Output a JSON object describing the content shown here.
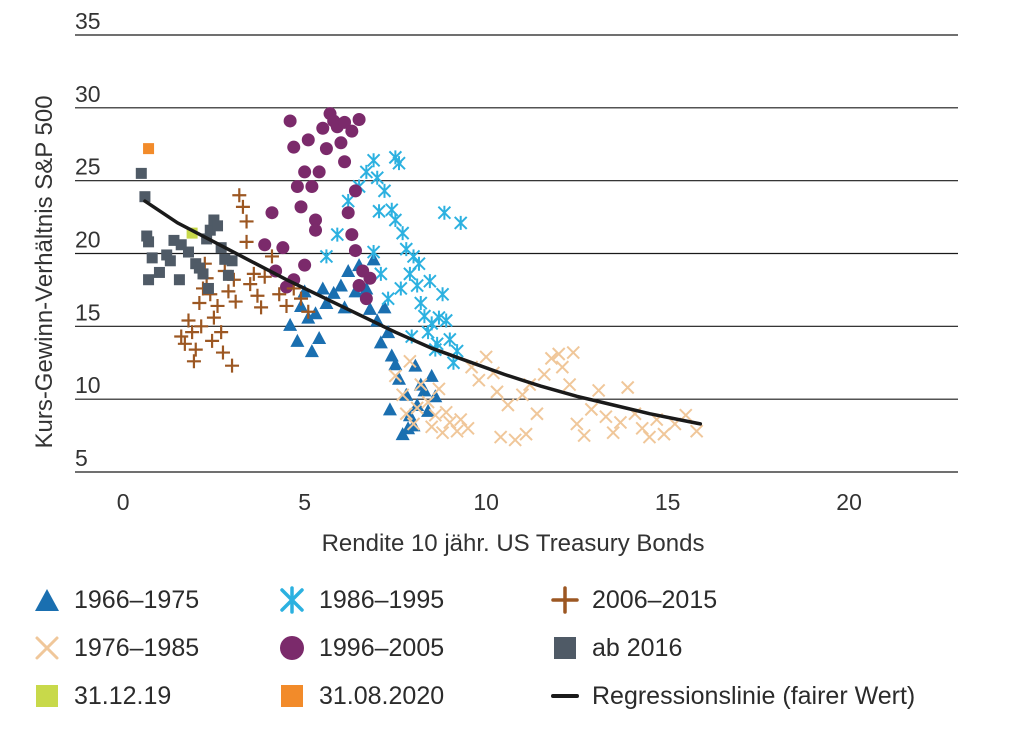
{
  "chart_data": {
    "type": "scatter",
    "title": "",
    "xlabel": "Rendite 10 jähr. US Treasury Bonds",
    "ylabel": "Kurs-Gewinn-Verhältnis S&P 500",
    "xlim": [
      -0.5,
      23
    ],
    "ylim": [
      5,
      35
    ],
    "x_ticks": [
      "0",
      "5",
      "10",
      "15",
      "20"
    ],
    "y_ticks": [
      "5",
      "10",
      "15",
      "20",
      "25",
      "30",
      "35"
    ],
    "grid": "horizontal",
    "legend_position": "bottom",
    "series": [
      {
        "name": "1966–1975",
        "marker": "triangle",
        "color": "#1a6fb0",
        "points": [
          [
            4.6,
            15.1
          ],
          [
            4.8,
            14.0
          ],
          [
            4.9,
            16.4
          ],
          [
            5.0,
            17.4
          ],
          [
            5.1,
            15.6
          ],
          [
            5.2,
            13.3
          ],
          [
            5.3,
            15.9
          ],
          [
            5.4,
            14.2
          ],
          [
            5.5,
            17.6
          ],
          [
            5.6,
            16.6
          ],
          [
            5.8,
            17.3
          ],
          [
            6.0,
            17.8
          ],
          [
            6.1,
            16.3
          ],
          [
            6.2,
            18.8
          ],
          [
            6.4,
            17.4
          ],
          [
            6.5,
            19.2
          ],
          [
            6.7,
            17.6
          ],
          [
            6.8,
            16.2
          ],
          [
            6.9,
            19.6
          ],
          [
            7.0,
            15.4
          ],
          [
            7.1,
            13.9
          ],
          [
            7.2,
            16.3
          ],
          [
            7.3,
            14.6
          ],
          [
            7.4,
            13.0
          ],
          [
            7.5,
            12.4
          ],
          [
            7.6,
            11.4
          ],
          [
            7.8,
            10.3
          ],
          [
            7.9,
            8.9
          ],
          [
            8.0,
            8.2
          ],
          [
            8.1,
            9.6
          ],
          [
            8.2,
            11.0
          ],
          [
            8.3,
            10.6
          ],
          [
            8.4,
            9.2
          ],
          [
            8.5,
            11.6
          ],
          [
            8.6,
            10.2
          ],
          [
            7.7,
            7.6
          ],
          [
            7.85,
            8.0
          ],
          [
            8.05,
            12.3
          ],
          [
            7.35,
            9.3
          ]
        ]
      },
      {
        "name": "1976–1985",
        "marker": "x",
        "color": "#f0c79a",
        "points": [
          [
            7.5,
            11.6
          ],
          [
            7.7,
            10.3
          ],
          [
            7.8,
            9.0
          ],
          [
            7.9,
            12.6
          ],
          [
            8.0,
            8.3
          ],
          [
            8.1,
            9.4
          ],
          [
            8.2,
            11.0
          ],
          [
            8.4,
            9.8
          ],
          [
            8.5,
            8.1
          ],
          [
            8.6,
            8.9
          ],
          [
            8.8,
            7.7
          ],
          [
            8.9,
            9.1
          ],
          [
            9.0,
            8.4
          ],
          [
            9.2,
            7.8
          ],
          [
            9.3,
            8.6
          ],
          [
            9.5,
            8.0
          ],
          [
            9.6,
            12.2
          ],
          [
            9.8,
            11.3
          ],
          [
            10.0,
            12.9
          ],
          [
            10.2,
            11.8
          ],
          [
            10.3,
            10.5
          ],
          [
            10.4,
            7.4
          ],
          [
            10.6,
            9.6
          ],
          [
            10.8,
            7.2
          ],
          [
            11.0,
            10.3
          ],
          [
            11.2,
            11.0
          ],
          [
            11.4,
            9.0
          ],
          [
            11.6,
            11.7
          ],
          [
            11.8,
            12.8
          ],
          [
            12.0,
            13.1
          ],
          [
            12.1,
            12.2
          ],
          [
            12.3,
            11.0
          ],
          [
            12.5,
            8.3
          ],
          [
            12.7,
            7.5
          ],
          [
            12.9,
            9.3
          ],
          [
            13.1,
            10.6
          ],
          [
            13.3,
            8.8
          ],
          [
            13.5,
            7.7
          ],
          [
            13.7,
            8.4
          ],
          [
            13.9,
            10.8
          ],
          [
            14.1,
            9.0
          ],
          [
            14.3,
            8.0
          ],
          [
            14.5,
            7.4
          ],
          [
            14.7,
            8.6
          ],
          [
            14.9,
            7.6
          ],
          [
            15.2,
            8.3
          ],
          [
            15.5,
            8.9
          ],
          [
            15.8,
            7.8
          ],
          [
            8.7,
            10.7
          ],
          [
            11.1,
            7.6
          ],
          [
            12.4,
            13.2
          ]
        ]
      },
      {
        "name": "1986–1995",
        "marker": "asterisk",
        "color": "#2cb1e0",
        "points": [
          [
            5.6,
            19.8
          ],
          [
            5.9,
            21.3
          ],
          [
            6.2,
            23.6
          ],
          [
            6.5,
            24.6
          ],
          [
            6.7,
            25.6
          ],
          [
            6.9,
            26.4
          ],
          [
            7.0,
            25.2
          ],
          [
            7.2,
            24.3
          ],
          [
            7.4,
            23.0
          ],
          [
            7.5,
            26.6
          ],
          [
            7.6,
            26.2
          ],
          [
            7.7,
            21.4
          ],
          [
            7.8,
            20.3
          ],
          [
            7.9,
            18.6
          ],
          [
            8.0,
            19.8
          ],
          [
            8.1,
            17.8
          ],
          [
            8.2,
            16.6
          ],
          [
            8.3,
            15.7
          ],
          [
            8.4,
            14.6
          ],
          [
            8.5,
            15.2
          ],
          [
            8.6,
            13.4
          ],
          [
            8.7,
            15.6
          ],
          [
            8.8,
            17.2
          ],
          [
            8.9,
            15.4
          ],
          [
            9.0,
            14.1
          ],
          [
            9.1,
            12.5
          ],
          [
            9.2,
            13.3
          ],
          [
            8.85,
            22.8
          ],
          [
            9.3,
            22.1
          ],
          [
            7.3,
            16.9
          ],
          [
            7.1,
            18.6
          ],
          [
            6.9,
            20.1
          ],
          [
            7.65,
            17.6
          ],
          [
            8.15,
            19.3
          ],
          [
            8.45,
            18.1
          ],
          [
            7.5,
            22.3
          ],
          [
            7.05,
            22.9
          ],
          [
            7.95,
            14.3
          ],
          [
            8.65,
            13.8
          ]
        ]
      },
      {
        "name": "1996–2005",
        "marker": "circle",
        "color": "#7b2a6b",
        "points": [
          [
            3.9,
            20.6
          ],
          [
            4.1,
            22.8
          ],
          [
            4.2,
            18.8
          ],
          [
            4.4,
            20.4
          ],
          [
            4.5,
            17.7
          ],
          [
            4.6,
            29.1
          ],
          [
            4.7,
            27.3
          ],
          [
            4.8,
            24.6
          ],
          [
            4.9,
            23.2
          ],
          [
            5.0,
            25.6
          ],
          [
            5.1,
            27.8
          ],
          [
            5.2,
            24.6
          ],
          [
            5.3,
            22.3
          ],
          [
            5.4,
            25.6
          ],
          [
            5.5,
            28.6
          ],
          [
            5.6,
            27.2
          ],
          [
            5.7,
            29.6
          ],
          [
            5.8,
            29.1
          ],
          [
            5.9,
            28.7
          ],
          [
            6.0,
            27.6
          ],
          [
            6.1,
            26.3
          ],
          [
            6.2,
            22.8
          ],
          [
            6.3,
            21.3
          ],
          [
            6.4,
            20.2
          ],
          [
            6.5,
            17.8
          ],
          [
            6.6,
            18.8
          ],
          [
            6.7,
            16.9
          ],
          [
            6.8,
            18.3
          ],
          [
            6.1,
            29.0
          ],
          [
            6.3,
            28.4
          ],
          [
            6.5,
            29.2
          ],
          [
            5.3,
            21.6
          ],
          [
            5.0,
            19.2
          ],
          [
            4.7,
            18.2
          ],
          [
            6.4,
            24.3
          ]
        ]
      },
      {
        "name": "2006–2015",
        "marker": "plus",
        "color": "#9c5722",
        "points": [
          [
            1.6,
            14.3
          ],
          [
            1.7,
            13.8
          ],
          [
            1.8,
            15.4
          ],
          [
            1.9,
            14.6
          ],
          [
            2.0,
            13.4
          ],
          [
            2.1,
            16.6
          ],
          [
            2.2,
            17.6
          ],
          [
            2.3,
            18.3
          ],
          [
            2.4,
            17.2
          ],
          [
            2.5,
            15.6
          ],
          [
            2.6,
            16.4
          ],
          [
            2.7,
            14.6
          ],
          [
            2.8,
            18.8
          ],
          [
            2.9,
            17.4
          ],
          [
            3.0,
            12.3
          ],
          [
            3.1,
            16.7
          ],
          [
            3.2,
            24.0
          ],
          [
            3.3,
            23.2
          ],
          [
            3.4,
            20.8
          ],
          [
            3.5,
            17.9
          ],
          [
            3.6,
            18.6
          ],
          [
            3.7,
            17.1
          ],
          [
            3.8,
            16.3
          ],
          [
            3.9,
            18.4
          ],
          [
            4.1,
            19.8
          ],
          [
            4.3,
            17.2
          ],
          [
            4.5,
            16.4
          ],
          [
            4.7,
            17.6
          ],
          [
            4.9,
            16.9
          ],
          [
            5.1,
            16.0
          ],
          [
            2.15,
            15.0
          ],
          [
            2.45,
            14.0
          ],
          [
            2.75,
            13.2
          ],
          [
            1.95,
            12.6
          ],
          [
            3.4,
            22.2
          ],
          [
            3.05,
            18.2
          ],
          [
            2.25,
            19.3
          ]
        ]
      },
      {
        "name": "ab 2016",
        "marker": "square",
        "color": "#4f5a66",
        "points": [
          [
            0.5,
            25.5
          ],
          [
            0.6,
            23.9
          ],
          [
            0.7,
            20.8
          ],
          [
            0.8,
            19.7
          ],
          [
            1.0,
            18.7
          ],
          [
            1.2,
            19.9
          ],
          [
            1.4,
            20.9
          ],
          [
            1.6,
            20.6
          ],
          [
            1.8,
            20.1
          ],
          [
            2.0,
            19.3
          ],
          [
            2.1,
            19.0
          ],
          [
            2.2,
            18.6
          ],
          [
            2.3,
            21.0
          ],
          [
            2.4,
            21.6
          ],
          [
            2.5,
            22.3
          ],
          [
            2.6,
            21.9
          ],
          [
            2.7,
            20.4
          ],
          [
            2.8,
            19.6
          ],
          [
            2.9,
            18.5
          ],
          [
            3.0,
            19.5
          ],
          [
            0.7,
            18.2
          ],
          [
            0.65,
            21.2
          ],
          [
            1.3,
            19.5
          ],
          [
            1.55,
            18.2
          ],
          [
            2.35,
            17.6
          ]
        ]
      },
      {
        "name": "31.12.19",
        "marker": "square",
        "color": "#c8d94a",
        "points": [
          [
            1.9,
            21.4
          ]
        ]
      },
      {
        "name": "31.08.2020",
        "marker": "square",
        "color": "#f28b2a",
        "points": [
          [
            0.7,
            27.2
          ]
        ]
      }
    ],
    "regression": {
      "name": "Regressionslinie (fairer Wert)",
      "color": "#1a1a1a",
      "points": [
        [
          0.6,
          23.6
        ],
        [
          1.5,
          22.1
        ],
        [
          2.5,
          20.8
        ],
        [
          3.5,
          19.5
        ],
        [
          4.5,
          18.2
        ],
        [
          5.5,
          17.0
        ],
        [
          6.5,
          15.8
        ],
        [
          7.5,
          14.6
        ],
        [
          8.5,
          13.5
        ],
        [
          9.5,
          12.6
        ],
        [
          10.5,
          11.7
        ],
        [
          11.5,
          10.9
        ],
        [
          12.5,
          10.2
        ],
        [
          13.5,
          9.6
        ],
        [
          14.5,
          9.0
        ],
        [
          15.5,
          8.5
        ],
        [
          15.9,
          8.3
        ]
      ]
    },
    "legend": [
      "1966–1975",
      "1986–1995",
      "2006–2015",
      "1976–1985",
      "1996–2005",
      "ab 2016",
      "31.12.19",
      "31.08.2020",
      "Regressionslinie (fairer Wert)"
    ]
  }
}
